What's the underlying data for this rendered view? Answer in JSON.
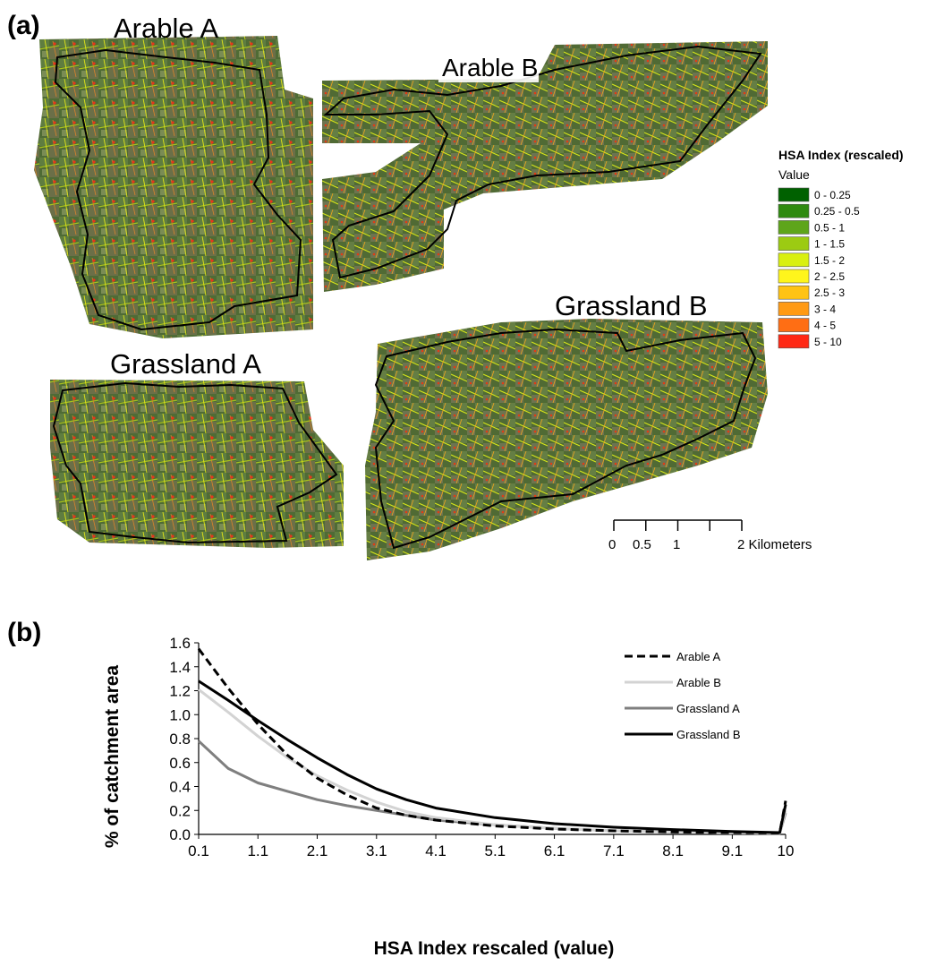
{
  "panel_a": {
    "label": "(a)",
    "maps": [
      {
        "name": "Arable A"
      },
      {
        "name": "Arable B"
      },
      {
        "name": "Grassland A"
      },
      {
        "name": "Grassland B"
      }
    ],
    "legend": {
      "title": "HSA Index (rescaled)",
      "subtitle": "Value",
      "classes": [
        {
          "label": "0 - 0.25",
          "color": "#006100"
        },
        {
          "label": "0.25 - 0.5",
          "color": "#2f8a10"
        },
        {
          "label": "0.5 - 1",
          "color": "#5ea51a"
        },
        {
          "label": "1 - 1.5",
          "color": "#9ccb12"
        },
        {
          "label": "1.5 - 2",
          "color": "#d9f00f"
        },
        {
          "label": "2 - 2.5",
          "color": "#fff51c"
        },
        {
          "label": "2.5 - 3",
          "color": "#ffc314"
        },
        {
          "label": "3 - 4",
          "color": "#ff9a14"
        },
        {
          "label": "4 - 5",
          "color": "#ff6e14"
        },
        {
          "label": "5 - 10",
          "color": "#ff2814"
        }
      ]
    },
    "scale_bar": {
      "ticks": [
        "0",
        "0.5",
        "1",
        "2 Kilometers"
      ],
      "values_km": [
        0,
        0.5,
        1,
        1.5,
        2
      ]
    }
  },
  "panel_b": {
    "label": "(b)"
  },
  "chart_data": {
    "type": "line",
    "title": "",
    "xlabel": "HSA Index rescaled (value)",
    "ylabel": "% of catchment area",
    "xlim": [
      0.1,
      10
    ],
    "ylim": [
      0,
      1.6
    ],
    "x_ticks": [
      "0.1",
      "1.1",
      "2.1",
      "3.1",
      "4.1",
      "5.1",
      "6.1",
      "7.1",
      "8.1",
      "9.1",
      "10"
    ],
    "y_ticks": [
      "0.0",
      "0.2",
      "0.4",
      "0.6",
      "0.8",
      "1.0",
      "1.2",
      "1.4",
      "1.6"
    ],
    "grid": false,
    "legend_position": "top-right",
    "series": [
      {
        "name": "Arable A",
        "color": "#000000",
        "dash": "dashed",
        "x": [
          0.1,
          0.6,
          1.1,
          1.6,
          2.1,
          2.6,
          3.1,
          3.6,
          4.1,
          5.1,
          6.1,
          7.1,
          8.1,
          9.1,
          9.9,
          10
        ],
        "y": [
          1.55,
          1.22,
          0.92,
          0.66,
          0.47,
          0.33,
          0.22,
          0.16,
          0.12,
          0.07,
          0.045,
          0.03,
          0.02,
          0.015,
          0.012,
          0.28
        ]
      },
      {
        "name": "Arable B",
        "color": "#d3d3d3",
        "dash": "solid",
        "x": [
          0.1,
          0.6,
          1.1,
          1.6,
          2.1,
          2.6,
          3.1,
          3.6,
          4.1,
          5.1,
          6.1,
          7.1,
          8.1,
          9.1,
          9.9,
          10
        ],
        "y": [
          1.21,
          1.02,
          0.82,
          0.64,
          0.49,
          0.37,
          0.27,
          0.19,
          0.14,
          0.08,
          0.05,
          0.03,
          0.02,
          0.012,
          0.01,
          0.2
        ]
      },
      {
        "name": "Grassland A",
        "color": "#7f7f7f",
        "dash": "solid",
        "x": [
          0.1,
          0.6,
          1.1,
          1.6,
          2.1,
          2.6,
          3.1,
          3.6,
          4.1,
          5.1,
          6.1,
          7.1,
          8.1,
          9.1,
          9.9,
          10
        ],
        "y": [
          0.78,
          0.55,
          0.43,
          0.36,
          0.29,
          0.24,
          0.2,
          0.16,
          0.12,
          0.08,
          0.05,
          0.03,
          0.02,
          0.012,
          0.01,
          0.18
        ]
      },
      {
        "name": "Grassland B",
        "color": "#000000",
        "dash": "solid",
        "x": [
          0.1,
          0.6,
          1.1,
          1.6,
          2.1,
          2.6,
          3.1,
          3.6,
          4.1,
          5.1,
          6.1,
          7.1,
          8.1,
          9.1,
          9.9,
          10
        ],
        "y": [
          1.28,
          1.12,
          0.95,
          0.79,
          0.64,
          0.5,
          0.38,
          0.29,
          0.22,
          0.14,
          0.09,
          0.06,
          0.04,
          0.025,
          0.015,
          0.25
        ]
      }
    ]
  }
}
